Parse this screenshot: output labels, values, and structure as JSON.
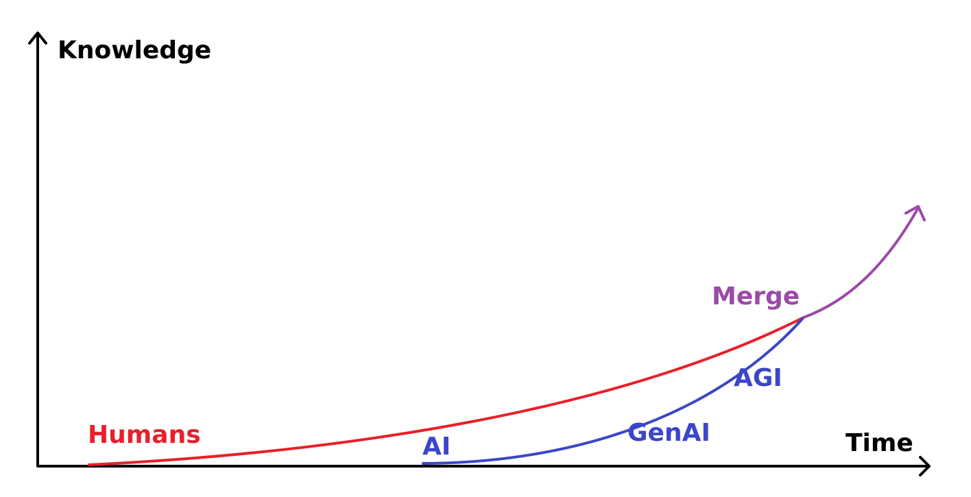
{
  "axes": {
    "y_label": "Knowledge",
    "x_label": "Time"
  },
  "curves": {
    "humans": {
      "label": "Humans",
      "color": "#e8202a"
    },
    "ai": {
      "label": "AI",
      "color": "#3b46c8"
    },
    "genai": {
      "label": "GenAI",
      "color": "#3b46c8"
    },
    "agi": {
      "label": "AGI",
      "color": "#3b46c8"
    },
    "merge": {
      "label": "Merge",
      "color": "#9b4aa8"
    }
  },
  "colors": {
    "axis": "#000000",
    "background": "#ffffff"
  }
}
